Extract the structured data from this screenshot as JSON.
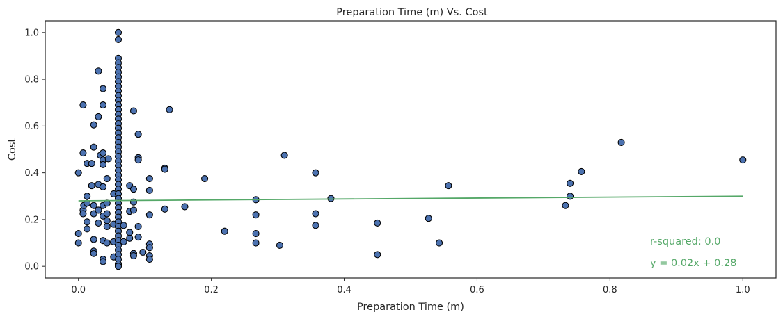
{
  "chart_data": {
    "type": "scatter",
    "title": "Preparation Time (m) Vs. Cost",
    "xlabel": "Preparation Time (m)",
    "ylabel": "Cost",
    "xlim": [
      -0.05,
      1.05
    ],
    "ylim": [
      -0.05,
      1.05
    ],
    "xticks": [
      0.0,
      0.2,
      0.4,
      0.6,
      0.8,
      1.0
    ],
    "xtick_labels": [
      "0.0",
      "0.2",
      "0.4",
      "0.6",
      "0.8",
      "1.0"
    ],
    "yticks": [
      0.0,
      0.2,
      0.4,
      0.6,
      0.8,
      1.0
    ],
    "ytick_labels": [
      "0.0",
      "0.2",
      "0.4",
      "0.6",
      "0.8",
      "1.0"
    ],
    "grid": false,
    "marker_color": "#4c72b0",
    "marker_edge_color": "#000000",
    "fit_color": "#55a868",
    "fit": {
      "slope": 0.02,
      "intercept": 0.28
    },
    "annotations": [
      "r-squared: 0.0",
      "y = 0.02x + 0.28"
    ],
    "points": [
      [
        0.0,
        0.4
      ],
      [
        0.0,
        0.14
      ],
      [
        0.0,
        0.1
      ],
      [
        0.007,
        0.69
      ],
      [
        0.007,
        0.485
      ],
      [
        0.007,
        0.24
      ],
      [
        0.007,
        0.225
      ],
      [
        0.008,
        0.26
      ],
      [
        0.013,
        0.44
      ],
      [
        0.013,
        0.3
      ],
      [
        0.013,
        0.27
      ],
      [
        0.013,
        0.19
      ],
      [
        0.013,
        0.16
      ],
      [
        0.02,
        0.44
      ],
      [
        0.02,
        0.345
      ],
      [
        0.023,
        0.605
      ],
      [
        0.023,
        0.51
      ],
      [
        0.023,
        0.26
      ],
      [
        0.023,
        0.225
      ],
      [
        0.023,
        0.115
      ],
      [
        0.023,
        0.065
      ],
      [
        0.023,
        0.055
      ],
      [
        0.03,
        0.835
      ],
      [
        0.03,
        0.64
      ],
      [
        0.03,
        0.35
      ],
      [
        0.03,
        0.24
      ],
      [
        0.03,
        0.185
      ],
      [
        0.033,
        0.475
      ],
      [
        0.037,
        0.76
      ],
      [
        0.037,
        0.69
      ],
      [
        0.037,
        0.485
      ],
      [
        0.037,
        0.455
      ],
      [
        0.037,
        0.435
      ],
      [
        0.037,
        0.34
      ],
      [
        0.037,
        0.26
      ],
      [
        0.037,
        0.215
      ],
      [
        0.037,
        0.11
      ],
      [
        0.037,
        0.03
      ],
      [
        0.037,
        0.02
      ],
      [
        0.043,
        0.375
      ],
      [
        0.043,
        0.27
      ],
      [
        0.043,
        0.225
      ],
      [
        0.043,
        0.195
      ],
      [
        0.043,
        0.17
      ],
      [
        0.043,
        0.1
      ],
      [
        0.045,
        0.46
      ],
      [
        0.053,
        0.31
      ],
      [
        0.053,
        0.18
      ],
      [
        0.053,
        0.105
      ],
      [
        0.053,
        0.04
      ],
      [
        0.06,
        1.0
      ],
      [
        0.06,
        0.97
      ],
      [
        0.06,
        0.89
      ],
      [
        0.06,
        0.87
      ],
      [
        0.06,
        0.85
      ],
      [
        0.06,
        0.83
      ],
      [
        0.06,
        0.81
      ],
      [
        0.06,
        0.79
      ],
      [
        0.06,
        0.77
      ],
      [
        0.06,
        0.75
      ],
      [
        0.06,
        0.73
      ],
      [
        0.06,
        0.71
      ],
      [
        0.06,
        0.69
      ],
      [
        0.06,
        0.67
      ],
      [
        0.06,
        0.65
      ],
      [
        0.06,
        0.63
      ],
      [
        0.06,
        0.61
      ],
      [
        0.06,
        0.59
      ],
      [
        0.06,
        0.57
      ],
      [
        0.06,
        0.55
      ],
      [
        0.06,
        0.53
      ],
      [
        0.06,
        0.51
      ],
      [
        0.06,
        0.49
      ],
      [
        0.06,
        0.47
      ],
      [
        0.06,
        0.45
      ],
      [
        0.06,
        0.43
      ],
      [
        0.06,
        0.41
      ],
      [
        0.06,
        0.39
      ],
      [
        0.06,
        0.37
      ],
      [
        0.06,
        0.35
      ],
      [
        0.06,
        0.33
      ],
      [
        0.06,
        0.31
      ],
      [
        0.06,
        0.29
      ],
      [
        0.06,
        0.27
      ],
      [
        0.06,
        0.25
      ],
      [
        0.06,
        0.23
      ],
      [
        0.06,
        0.21
      ],
      [
        0.06,
        0.19
      ],
      [
        0.06,
        0.17
      ],
      [
        0.06,
        0.15
      ],
      [
        0.06,
        0.13
      ],
      [
        0.06,
        0.11
      ],
      [
        0.06,
        0.09
      ],
      [
        0.06,
        0.07
      ],
      [
        0.06,
        0.05
      ],
      [
        0.06,
        0.03
      ],
      [
        0.06,
        0.01
      ],
      [
        0.06,
        0.0
      ],
      [
        0.068,
        0.175
      ],
      [
        0.068,
        0.105
      ],
      [
        0.077,
        0.345
      ],
      [
        0.077,
        0.235
      ],
      [
        0.077,
        0.145
      ],
      [
        0.077,
        0.12
      ],
      [
        0.083,
        0.665
      ],
      [
        0.083,
        0.33
      ],
      [
        0.083,
        0.275
      ],
      [
        0.083,
        0.24
      ],
      [
        0.083,
        0.055
      ],
      [
        0.083,
        0.045
      ],
      [
        0.09,
        0.565
      ],
      [
        0.09,
        0.465
      ],
      [
        0.09,
        0.455
      ],
      [
        0.09,
        0.17
      ],
      [
        0.09,
        0.125
      ],
      [
        0.097,
        0.06
      ],
      [
        0.107,
        0.375
      ],
      [
        0.107,
        0.325
      ],
      [
        0.107,
        0.22
      ],
      [
        0.107,
        0.095
      ],
      [
        0.107,
        0.08
      ],
      [
        0.107,
        0.045
      ],
      [
        0.107,
        0.03
      ],
      [
        0.13,
        0.42
      ],
      [
        0.13,
        0.415
      ],
      [
        0.13,
        0.245
      ],
      [
        0.137,
        0.67
      ],
      [
        0.16,
        0.255
      ],
      [
        0.19,
        0.375
      ],
      [
        0.22,
        0.15
      ],
      [
        0.267,
        0.285
      ],
      [
        0.267,
        0.22
      ],
      [
        0.267,
        0.14
      ],
      [
        0.267,
        0.1
      ],
      [
        0.303,
        0.09
      ],
      [
        0.31,
        0.475
      ],
      [
        0.357,
        0.4
      ],
      [
        0.357,
        0.225
      ],
      [
        0.357,
        0.175
      ],
      [
        0.38,
        0.29
      ],
      [
        0.45,
        0.185
      ],
      [
        0.45,
        0.05
      ],
      [
        0.527,
        0.205
      ],
      [
        0.543,
        0.1
      ],
      [
        0.557,
        0.345
      ],
      [
        0.733,
        0.26
      ],
      [
        0.74,
        0.355
      ],
      [
        0.74,
        0.3
      ],
      [
        0.757,
        0.405
      ],
      [
        0.817,
        0.53
      ],
      [
        1.0,
        0.455
      ]
    ]
  }
}
